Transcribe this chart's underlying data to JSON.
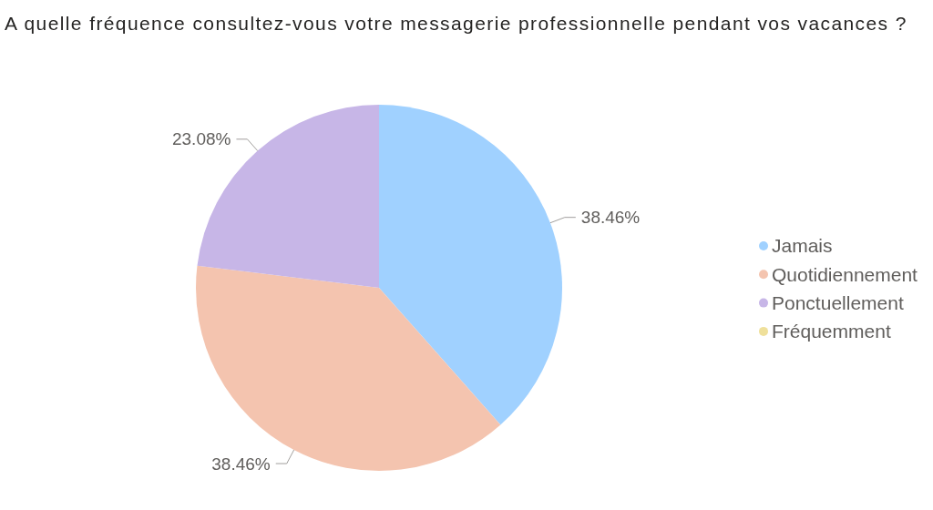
{
  "chart_data": {
    "type": "pie",
    "title": "A quelle fréquence consultez-vous votre messagerie professionnelle pendant vos vacances ?",
    "categories": [
      "Jamais",
      "Quotidiennement",
      "Ponctuellement",
      "Fréquemment"
    ],
    "values": [
      38.46,
      38.46,
      23.08,
      0
    ],
    "colors": [
      "#a0d1ff",
      "#f4c4af",
      "#c7b6e7",
      "#efe09b"
    ],
    "value_labels": [
      "38.46%",
      "38.46%",
      "23.08%",
      null
    ],
    "legend": "right"
  }
}
